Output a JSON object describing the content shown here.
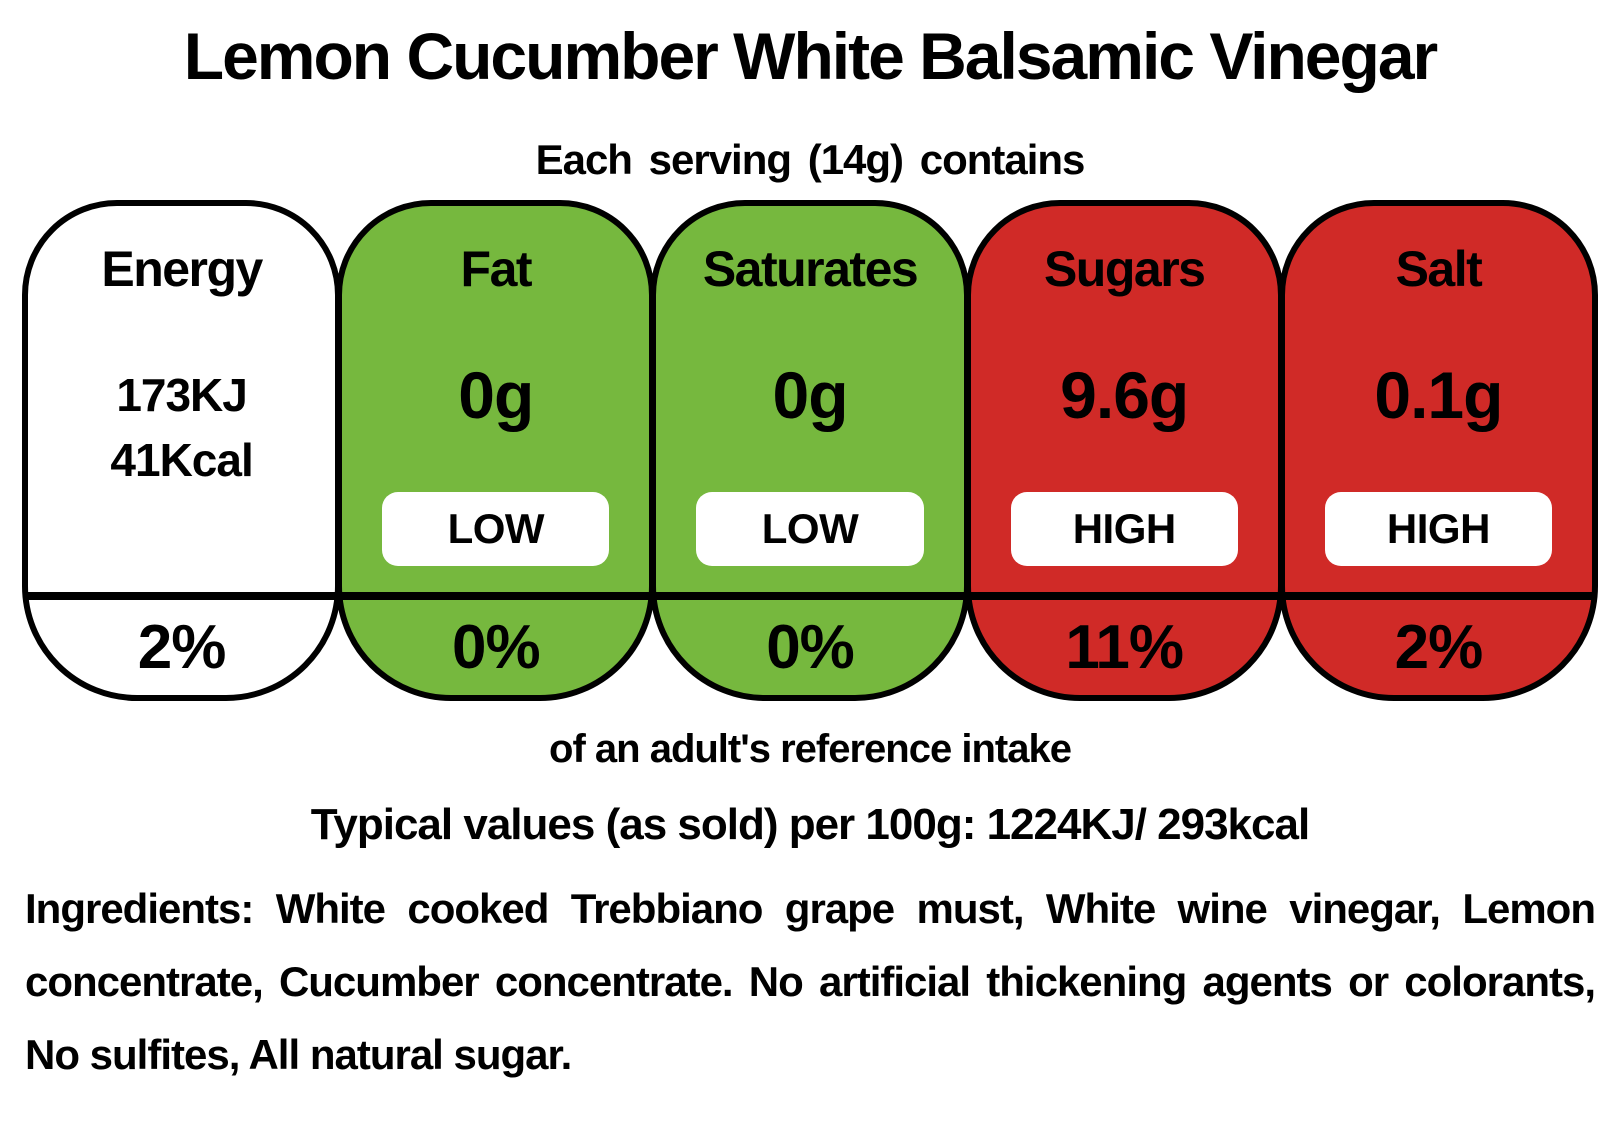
{
  "title": "Lemon Cucumber White Balsamic Vinegar",
  "serving_line": "Each serving (14g) contains",
  "colors": {
    "low_green": "#76B83E",
    "high_red": "#D02A27",
    "neutral_white": "#FFFFFF",
    "outline_black": "#000000"
  },
  "badges": [
    {
      "name": "Energy",
      "values": [
        "173KJ",
        "41Kcal"
      ],
      "level": "",
      "percent": "2%",
      "color": "white"
    },
    {
      "name": "Fat",
      "value": "0g",
      "level": "LOW",
      "percent": "0%",
      "color": "green"
    },
    {
      "name": "Saturates",
      "value": "0g",
      "level": "LOW",
      "percent": "0%",
      "color": "green"
    },
    {
      "name": "Sugars",
      "value": "9.6g",
      "level": "HIGH",
      "percent": "11%",
      "color": "red"
    },
    {
      "name": "Salt",
      "value": "0.1g",
      "level": "HIGH",
      "percent": "2%",
      "color": "red"
    }
  ],
  "footer": {
    "reference_line": "of an adult's reference intake",
    "typical_values_line": "Typical values (as sold) per 100g: 1224KJ/ 293kcal",
    "ingredients_line": "Ingredients: White cooked Trebbiano grape must, White wine vinegar, Lemon concentrate, Cucumber concentrate. No artificial thickening agents or colorants, No sulfites, All natural sugar."
  }
}
